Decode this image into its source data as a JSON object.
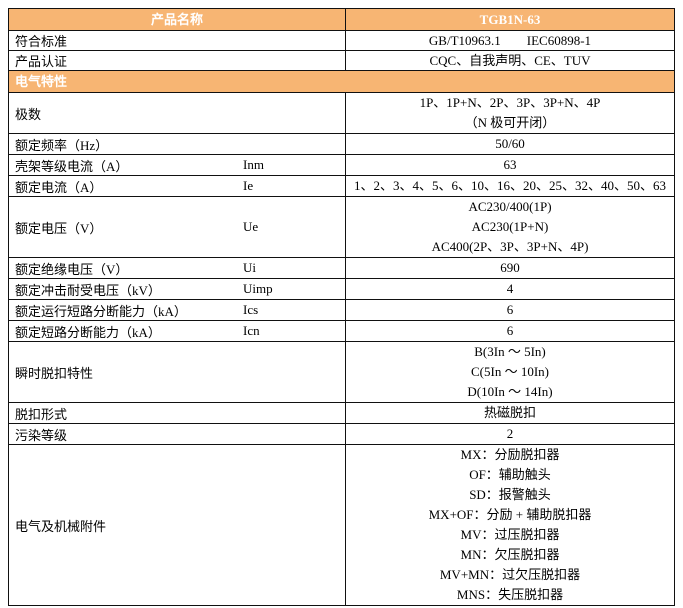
{
  "theme": {
    "accent_color": "#F7B573",
    "header_text_color": "#FFFFFF",
    "border_color": "#111111",
    "body_text_color": "#000000"
  },
  "table": {
    "product_name_label": "产品名称",
    "product_name_value": "TGB1N-63",
    "rows": [
      {
        "kind": "data",
        "label": "符合标准",
        "symbol": "",
        "lines": [
          "GB/T10963.1　　IEC60898-1"
        ]
      },
      {
        "kind": "data",
        "label": "产品认证",
        "symbol": "",
        "lines": [
          "CQC、自我声明、CE、TUV"
        ]
      },
      {
        "kind": "section",
        "label": "电气特性"
      },
      {
        "kind": "data",
        "label": "极数",
        "symbol": "",
        "lines": [
          "1P、1P+N、2P、3P、3P+N、4P",
          "（N 极可开闭）"
        ]
      },
      {
        "kind": "data",
        "label": "额定频率（Hz）",
        "symbol": "",
        "lines": [
          "50/60"
        ]
      },
      {
        "kind": "data",
        "label": "壳架等级电流（A）",
        "symbol": "Inm",
        "lines": [
          "63"
        ]
      },
      {
        "kind": "data",
        "label": "额定电流（A）",
        "symbol": "Ie",
        "lines": [
          "1、2、3、4、5、6、10、16、20、25、32、40、50、63"
        ]
      },
      {
        "kind": "data",
        "label": "额定电压（V）",
        "symbol": "Ue",
        "lines": [
          "AC230/400(1P)",
          "AC230(1P+N)",
          "AC400(2P、3P、3P+N、4P)"
        ]
      },
      {
        "kind": "data",
        "label": "额定绝缘电压（V）",
        "symbol": "Ui",
        "lines": [
          "690"
        ]
      },
      {
        "kind": "data",
        "label": "额定冲击耐受电压（kV）",
        "symbol": "Uimp",
        "lines": [
          "4"
        ]
      },
      {
        "kind": "data",
        "label": "额定运行短路分断能力（kA）",
        "symbol": "Ics",
        "lines": [
          "6"
        ]
      },
      {
        "kind": "data",
        "label": "额定短路分断能力（kA）",
        "symbol": "Icn",
        "lines": [
          "6"
        ]
      },
      {
        "kind": "data",
        "label": "瞬时脱扣特性",
        "symbol": "",
        "lines": [
          "B(3In ～ 5In)",
          "C(5In ～ 10In)",
          "D(10In ～ 14In)"
        ]
      },
      {
        "kind": "data",
        "label": "脱扣形式",
        "symbol": "",
        "lines": [
          "热磁脱扣"
        ]
      },
      {
        "kind": "data",
        "label": "污染等级",
        "symbol": "",
        "lines": [
          "2"
        ]
      },
      {
        "kind": "data",
        "label": "电气及机械附件",
        "symbol": "",
        "lines": [
          "MX：分励脱扣器",
          "OF：辅助触头",
          "SD：报警触头",
          "MX+OF：分励 + 辅助脱扣器",
          "MV：过压脱扣器",
          "MN：欠压脱扣器",
          "MV+MN：过欠压脱扣器",
          "MNS：失压脱扣器"
        ]
      }
    ]
  }
}
